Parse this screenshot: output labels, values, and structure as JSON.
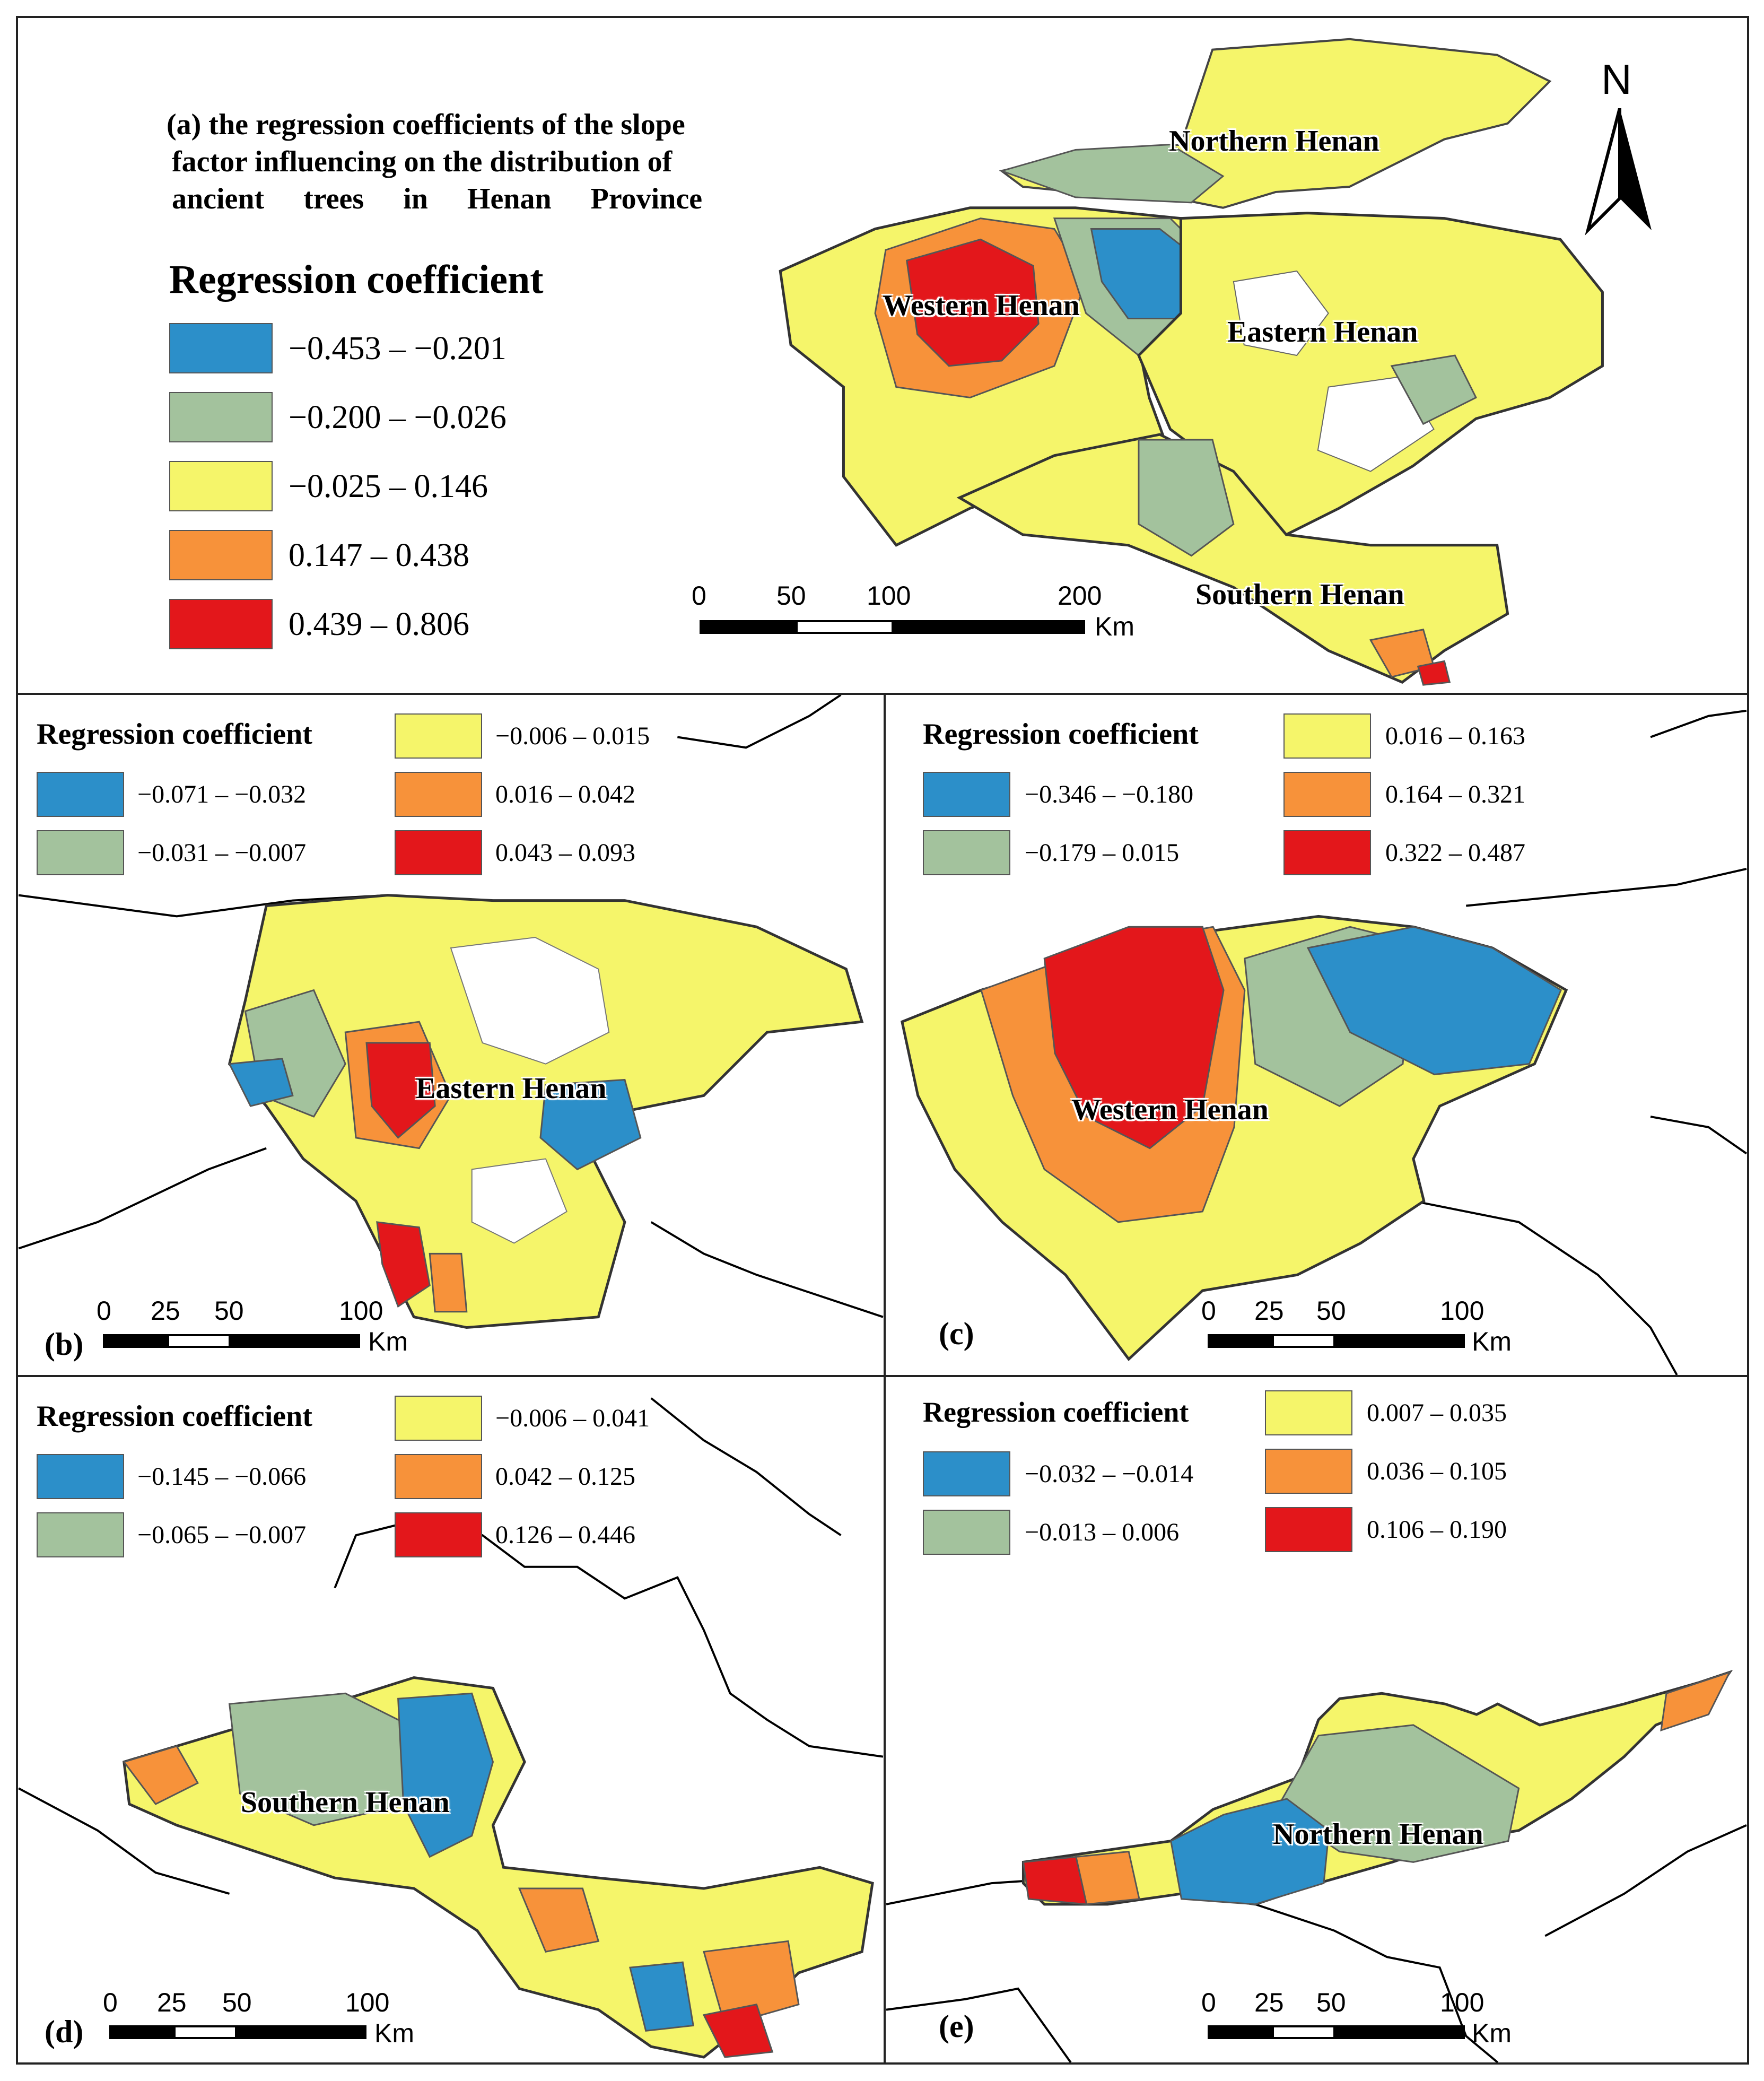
{
  "colors": {
    "blue": "#2c8fc9",
    "green": "#a3c29d",
    "yellow": "#f5f56a",
    "orange": "#f7923a",
    "red": "#e3171b"
  },
  "panel_a": {
    "title_lines": [
      "(a) the regression coefficients of the slope",
      "factor influencing on the distribution of",
      "ancient trees in Henan Province"
    ],
    "legend_title": "Regression coefficient",
    "legend": [
      {
        "label": "−0.453 – −0.201",
        "color": "#2c8fc9"
      },
      {
        "label": "−0.200 – −0.026",
        "color": "#a3c29d"
      },
      {
        "label": "−0.025 – 0.146",
        "color": "#f5f56a"
      },
      {
        "label": "0.147 – 0.438",
        "color": "#f7923a"
      },
      {
        "label": "0.439 – 0.806",
        "color": "#e3171b"
      }
    ],
    "regions": {
      "northern": "Northern Henan",
      "western": "Western Henan",
      "eastern": "Eastern Henan",
      "southern": "Southern Henan"
    },
    "north_arrow": "N",
    "scale": {
      "ticks": [
        "0",
        "50",
        "100",
        "200"
      ],
      "unit": "Km"
    }
  },
  "panel_b": {
    "letter": "(b)",
    "legend_title": "Regression coefficient",
    "legend": [
      {
        "label": "−0.071 – −0.032",
        "color": "#2c8fc9"
      },
      {
        "label": "−0.031 – −0.007",
        "color": "#a3c29d"
      },
      {
        "label": "−0.006 – 0.015",
        "color": "#f5f56a"
      },
      {
        "label": "0.016 – 0.042",
        "color": "#f7923a"
      },
      {
        "label": "0.043 – 0.093",
        "color": "#e3171b"
      }
    ],
    "region": "Eastern Henan",
    "scale": {
      "ticks": [
        "0",
        "25",
        "50",
        "100"
      ],
      "unit": "Km"
    }
  },
  "panel_c": {
    "letter": "(c)",
    "legend_title": "Regression coefficient",
    "legend": [
      {
        "label": "−0.346 – −0.180",
        "color": "#2c8fc9"
      },
      {
        "label": "−0.179 – 0.015",
        "color": "#a3c29d"
      },
      {
        "label": "0.016 – 0.163",
        "color": "#f5f56a"
      },
      {
        "label": "0.164 – 0.321",
        "color": "#f7923a"
      },
      {
        "label": "0.322 – 0.487",
        "color": "#e3171b"
      }
    ],
    "region": "Western Henan",
    "scale": {
      "ticks": [
        "0",
        "25",
        "50",
        "100"
      ],
      "unit": "Km"
    }
  },
  "panel_d": {
    "letter": "(d)",
    "legend_title": "Regression coefficient",
    "legend": [
      {
        "label": "−0.145 – −0.066",
        "color": "#2c8fc9"
      },
      {
        "label": "−0.065 – −0.007",
        "color": "#a3c29d"
      },
      {
        "label": "−0.006 – 0.041",
        "color": "#f5f56a"
      },
      {
        "label": "0.042 – 0.125",
        "color": "#f7923a"
      },
      {
        "label": "0.126 – 0.446",
        "color": "#e3171b"
      }
    ],
    "region": "Southern Henan",
    "scale": {
      "ticks": [
        "0",
        "25",
        "50",
        "100"
      ],
      "unit": "Km"
    }
  },
  "panel_e": {
    "letter": "(e)",
    "legend_title": "Regression coefficient",
    "legend": [
      {
        "label": "−0.032 – −0.014",
        "color": "#2c8fc9"
      },
      {
        "label": "−0.013 – 0.006",
        "color": "#a3c29d"
      },
      {
        "label": "0.007 – 0.035",
        "color": "#f5f56a"
      },
      {
        "label": "0.036 – 0.105",
        "color": "#f7923a"
      },
      {
        "label": "0.106 – 0.190",
        "color": "#e3171b"
      }
    ],
    "region": "Northern Henan",
    "scale": {
      "ticks": [
        "0",
        "25",
        "50",
        "100"
      ],
      "unit": "Km"
    }
  }
}
